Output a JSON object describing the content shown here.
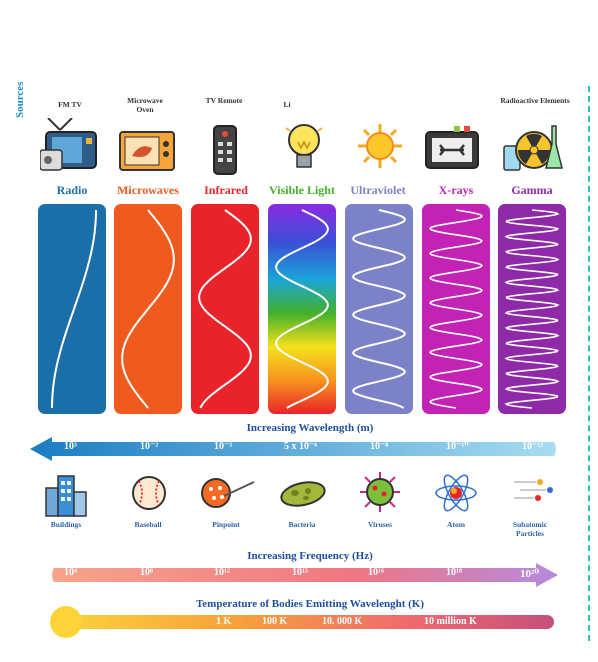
{
  "sources": {
    "title": "Sources",
    "labels": [
      "FM  TV",
      "Microwave Oven",
      "TV Remote",
      "Li",
      "Radioactive Elements"
    ]
  },
  "bands": [
    {
      "name": "Radio",
      "color": "#1a6fa8"
    },
    {
      "name": "Microwaves",
      "color": "#f05a1e"
    },
    {
      "name": "Infrared",
      "color": "#e8232a"
    },
    {
      "name": "Visible Light",
      "color": "#44b02c"
    },
    {
      "name": "Ultraviolet",
      "color": "#7c82c8"
    },
    {
      "name": "X-rays",
      "color": "#c223b4"
    },
    {
      "name": "Gamma",
      "color": "#8e2aa8"
    }
  ],
  "wavelength": {
    "title": "Increasing Wavelength (m)",
    "ticks": [
      "10³",
      "10⁻²",
      "10⁻⁵",
      "5 x 10⁻⁶",
      "10⁻⁸",
      "10⁻¹⁰",
      "10⁻¹²"
    ]
  },
  "objects": [
    "Buildings",
    "Baseball",
    "Pinpoint",
    "Bacteria",
    "Viruses",
    "Atom",
    "Subatomic Particles"
  ],
  "frequency": {
    "title": "Increasing Frequency (Hz)",
    "ticks": [
      "10⁴",
      "10⁸",
      "10¹²",
      "10¹⁵",
      "10¹⁶",
      "10¹⁸",
      "10²⁰"
    ]
  },
  "temperature": {
    "title": "Temperature of Bodies Emitting Wavelenght (K)",
    "labels": [
      "1 K",
      "100 K",
      "10. 000 K",
      "10 million K"
    ]
  }
}
